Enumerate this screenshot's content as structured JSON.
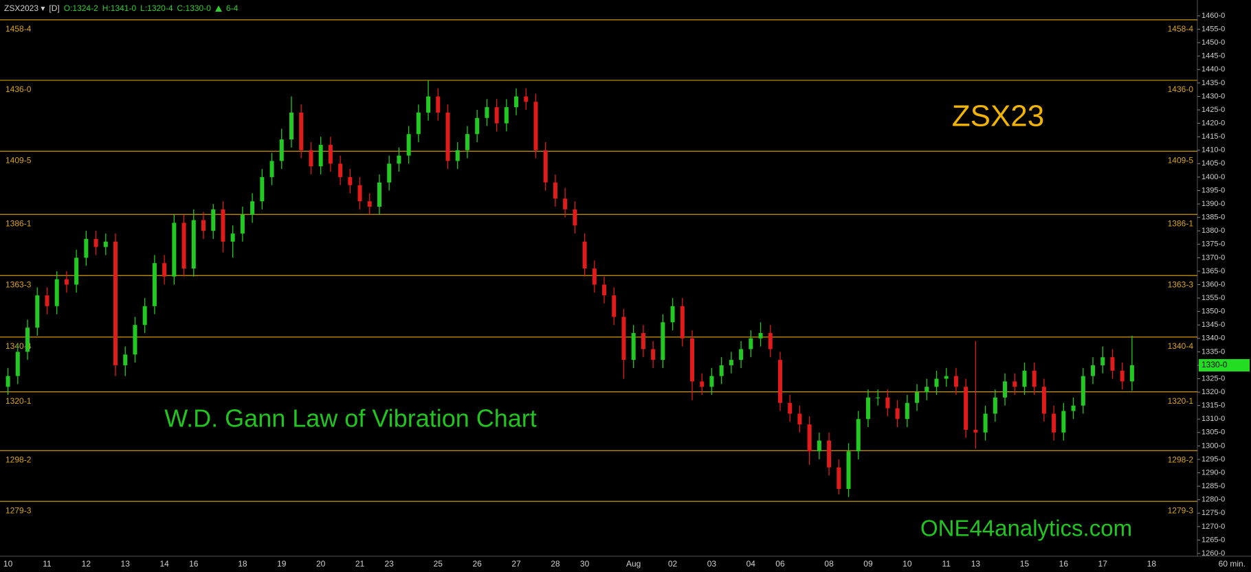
{
  "chart_data": {
    "type": "candlestick",
    "symbol": "ZSX2023 ▾",
    "interval": "[D]",
    "header": {
      "open": "O:1324-2",
      "high": "H:1341-0",
      "low": "L:1320-4",
      "close": "C:1330-0",
      "change": "6-4"
    },
    "title": "ZSX23",
    "subtitle": "W.D. Gann Law of Vibration Chart",
    "watermark": "ONE44analytics.com",
    "x_unit_label": "60 min.",
    "categories": [
      "10",
      null,
      null,
      null,
      "11",
      null,
      null,
      null,
      "12",
      null,
      null,
      null,
      "13",
      null,
      null,
      null,
      "14",
      null,
      null,
      "16",
      null,
      null,
      null,
      null,
      "18",
      null,
      null,
      null,
      "19",
      null,
      null,
      null,
      "20",
      null,
      null,
      null,
      "21",
      null,
      null,
      "23",
      null,
      null,
      null,
      null,
      "25",
      null,
      null,
      null,
      "26",
      null,
      null,
      null,
      "27",
      null,
      null,
      null,
      "28",
      null,
      null,
      "30",
      null,
      null,
      null,
      null,
      "Aug",
      null,
      null,
      null,
      "02",
      null,
      null,
      null,
      "03",
      null,
      null,
      null,
      "04",
      null,
      null,
      "06",
      null,
      null,
      null,
      null,
      "08",
      null,
      null,
      null,
      "09",
      null,
      null,
      null,
      "10",
      null,
      null,
      null,
      "11",
      null,
      null,
      "13",
      null,
      null,
      null,
      null,
      "15",
      null,
      null,
      null,
      "16",
      null,
      null,
      null,
      "17",
      null,
      null,
      null,
      null,
      "18"
    ],
    "open": [
      1322,
      1326,
      1335,
      1344,
      1356,
      1352,
      1362,
      1360,
      1370,
      1377,
      1374,
      1376,
      1330,
      1334,
      1345,
      1352,
      1368,
      1363,
      1383,
      1366,
      1384,
      1380,
      1388,
      1376,
      1379,
      1386,
      1391,
      1400,
      1406,
      1414,
      1424,
      1410,
      1404,
      1412,
      1405,
      1400,
      1397,
      1391,
      1389,
      1398,
      1405,
      1408,
      1416,
      1424,
      1430,
      1424,
      1406,
      1410,
      1416,
      1422,
      1426,
      1420,
      1426,
      1430,
      1428,
      1410,
      1398,
      1392,
      1388,
      1376,
      1366,
      1360,
      1356,
      1348,
      1332,
      1342,
      1336,
      1332,
      1346,
      1352,
      1340,
      1324,
      1322,
      1326,
      1330,
      1332,
      1336,
      1340,
      1342,
      1332,
      1316,
      1312,
      1308,
      1298,
      1302,
      1292,
      1284,
      1298,
      1310,
      1318,
      1318,
      1314,
      1310,
      1316,
      1320,
      1322,
      1325,
      1326,
      1322,
      1306,
      1305,
      1312,
      1318,
      1324,
      1322,
      1328,
      1322,
      1312,
      1305,
      1313,
      1315,
      1326,
      1330,
      1333,
      1328,
      1324,
      null,
      null
    ],
    "high": [
      1329,
      1338,
      1347,
      1359,
      1359,
      1365,
      1365,
      1373,
      1380,
      1380,
      1379,
      1379,
      1337,
      1348,
      1355,
      1371,
      1371,
      1386,
      1386,
      1388,
      1387,
      1390,
      1391,
      1382,
      1389,
      1394,
      1403,
      1409,
      1418,
      1430,
      1427,
      1413,
      1415,
      1415,
      1408,
      1403,
      1400,
      1394,
      1401,
      1408,
      1411,
      1419,
      1427,
      1436,
      1433,
      1427,
      1413,
      1419,
      1425,
      1429,
      1429,
      1429,
      1433,
      1433,
      1431,
      1413,
      1401,
      1396,
      1391,
      1379,
      1369,
      1363,
      1359,
      1351,
      1345,
      1345,
      1339,
      1349,
      1355,
      1355,
      1343,
      1327,
      1329,
      1333,
      1335,
      1339,
      1343,
      1346,
      1345,
      1335,
      1319,
      1315,
      1311,
      1305,
      1305,
      1295,
      1301,
      1313,
      1321,
      1321,
      1321,
      1317,
      1319,
      1323,
      1325,
      1328,
      1329,
      1329,
      1325,
      1339,
      1315,
      1321,
      1327,
      1327,
      1331,
      1331,
      1325,
      1315,
      1316,
      1318,
      1329,
      1333,
      1337,
      1336,
      1331,
      1341,
      null,
      null
    ],
    "low": [
      1319,
      1323,
      1332,
      1341,
      1349,
      1349,
      1357,
      1357,
      1367,
      1371,
      1371,
      1326,
      1326,
      1331,
      1342,
      1349,
      1360,
      1360,
      1363,
      1363,
      1377,
      1377,
      1372,
      1370,
      1376,
      1383,
      1388,
      1397,
      1403,
      1411,
      1407,
      1401,
      1401,
      1402,
      1397,
      1394,
      1388,
      1386,
      1386,
      1395,
      1402,
      1405,
      1413,
      1421,
      1421,
      1403,
      1403,
      1407,
      1413,
      1419,
      1417,
      1417,
      1423,
      1425,
      1407,
      1395,
      1389,
      1385,
      1379,
      1363,
      1357,
      1353,
      1345,
      1325,
      1329,
      1333,
      1329,
      1329,
      1343,
      1337,
      1317,
      1319,
      1319,
      1323,
      1327,
      1329,
      1333,
      1337,
      1333,
      1313,
      1309,
      1305,
      1293,
      1295,
      1289,
      1282,
      1281,
      1295,
      1307,
      1315,
      1311,
      1307,
      1307,
      1313,
      1317,
      1319,
      1322,
      1319,
      1303,
      1299,
      1302,
      1309,
      1315,
      1319,
      1319,
      1319,
      1309,
      1302,
      1302,
      1310,
      1312,
      1323,
      1327,
      1325,
      1321,
      1320.5,
      null,
      null
    ],
    "close": [
      1326,
      1335,
      1344,
      1356,
      1352,
      1362,
      1360,
      1370,
      1377,
      1374,
      1376,
      1330,
      1334,
      1345,
      1352,
      1368,
      1363,
      1383,
      1366,
      1384,
      1380,
      1388,
      1376,
      1379,
      1386,
      1391,
      1400,
      1406,
      1414,
      1424,
      1410,
      1404,
      1412,
      1405,
      1400,
      1397,
      1391,
      1389,
      1398,
      1405,
      1408,
      1416,
      1424,
      1430,
      1424,
      1406,
      1410,
      1416,
      1422,
      1426,
      1420,
      1426,
      1430,
      1428,
      1410,
      1398,
      1392,
      1388,
      1382,
      1366,
      1360,
      1356,
      1348,
      1332,
      1342,
      1336,
      1332,
      1346,
      1352,
      1340,
      1324,
      1322,
      1326,
      1330,
      1332,
      1336,
      1340,
      1342,
      1336,
      1316,
      1312,
      1308,
      1298,
      1302,
      1292,
      1284,
      1298,
      1310,
      1318,
      1318,
      1314,
      1310,
      1316,
      1320,
      1322,
      1325,
      1326,
      1322,
      1306,
      1305,
      1312,
      1318,
      1324,
      1322,
      1328,
      1322,
      1312,
      1305,
      1313,
      1315,
      1326,
      1330,
      1333,
      1328,
      1324,
      1330,
      null,
      null
    ],
    "up_color": "#22c922",
    "down_color": "#e01b1b",
    "levels": [
      {
        "value": 1458.5,
        "label": "1458-4"
      },
      {
        "value": 1436,
        "label": "1436-0"
      },
      {
        "value": 1409.625,
        "label": "1409-5"
      },
      {
        "value": 1386.125,
        "label": "1386-1"
      },
      {
        "value": 1363.375,
        "label": "1363-3"
      },
      {
        "value": 1340.5,
        "label": "1340-4"
      },
      {
        "value": 1320.125,
        "label": "1320-1"
      },
      {
        "value": 1298.25,
        "label": "1298-2"
      },
      {
        "value": 1279.375,
        "label": "1279-3"
      }
    ],
    "level_color": "#c99a06",
    "last": {
      "value": 1330,
      "label": "1330-0"
    },
    "ylim": [
      1260,
      1460
    ],
    "yticks": [
      {
        "value": 1460,
        "label": "1460-0"
      },
      {
        "value": 1455,
        "label": "1455-0"
      },
      {
        "value": 1450,
        "label": "1450-0"
      },
      {
        "value": 1445,
        "label": "1445-0"
      },
      {
        "value": 1440,
        "label": "1440-0"
      },
      {
        "value": 1435,
        "label": "1435-0"
      },
      {
        "value": 1430,
        "label": "1430-0"
      },
      {
        "value": 1425,
        "label": "1425-0"
      },
      {
        "value": 1420,
        "label": "1420-0"
      },
      {
        "value": 1415,
        "label": "1415-0"
      },
      {
        "value": 1410,
        "label": "1410-0"
      },
      {
        "value": 1405,
        "label": "1405-0"
      },
      {
        "value": 1400,
        "label": "1400-0"
      },
      {
        "value": 1395,
        "label": "1395-0"
      },
      {
        "value": 1390,
        "label": "1390-0"
      },
      {
        "value": 1385,
        "label": "1385-0"
      },
      {
        "value": 1380,
        "label": "1380-0"
      },
      {
        "value": 1375,
        "label": "1375-0"
      },
      {
        "value": 1370,
        "label": "1370-0"
      },
      {
        "value": 1365,
        "label": "1365-0"
      },
      {
        "value": 1360,
        "label": "1360-0"
      },
      {
        "value": 1355,
        "label": "1355-0"
      },
      {
        "value": 1350,
        "label": "1350-0"
      },
      {
        "value": 1345,
        "label": "1345-0"
      },
      {
        "value": 1340,
        "label": "1340-0"
      },
      {
        "value": 1335,
        "label": "1335-0"
      },
      {
        "value": 1330,
        "label": "1330-0"
      },
      {
        "value": 1325,
        "label": "1325-0"
      },
      {
        "value": 1320,
        "label": "1320-0"
      },
      {
        "value": 1315,
        "label": "1315-0"
      },
      {
        "value": 1310,
        "label": "1310-0"
      },
      {
        "value": 1305,
        "label": "1305-0"
      },
      {
        "value": 1300,
        "label": "1300-0"
      },
      {
        "value": 1295,
        "label": "1295-0"
      },
      {
        "value": 1290,
        "label": "1290-0"
      },
      {
        "value": 1285,
        "label": "1285-0"
      },
      {
        "value": 1280,
        "label": "1280-0"
      },
      {
        "value": 1275,
        "label": "1275-0"
      },
      {
        "value": 1270,
        "label": "1270-0"
      },
      {
        "value": 1265,
        "label": "1265-0"
      },
      {
        "value": 1260,
        "label": "1260-0"
      }
    ]
  }
}
